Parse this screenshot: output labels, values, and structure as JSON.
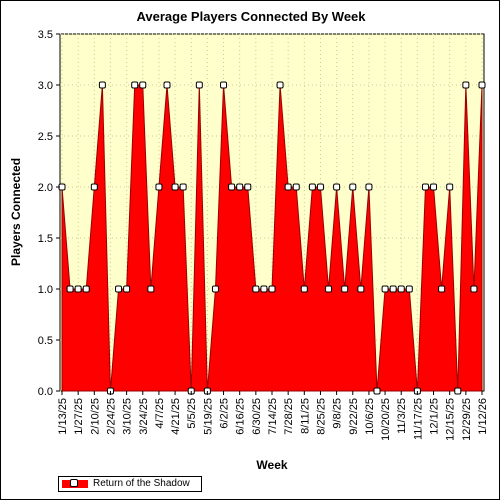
{
  "chart_data": {
    "type": "area",
    "title": "Average Players Connected By Week",
    "xlabel": "Week",
    "ylabel": "Players Connected",
    "ylim": [
      0,
      3.5
    ],
    "yticks": [
      "0.0",
      "0.5",
      "1.0",
      "1.5",
      "2.0",
      "2.5",
      "3.0",
      "3.5"
    ],
    "x_tick_labels": [
      "1/13/25",
      "1/27/25",
      "2/10/25",
      "2/24/25",
      "3/10/25",
      "3/24/25",
      "4/7/25",
      "4/21/25",
      "5/5/25",
      "5/19/25",
      "6/2/25",
      "6/16/25",
      "6/30/25",
      "7/14/25",
      "7/28/25",
      "8/11/25",
      "8/25/25",
      "9/8/25",
      "9/22/25",
      "10/6/25",
      "10/20/25",
      "11/3/25",
      "11/17/25",
      "12/1/25",
      "12/15/25",
      "12/29/25",
      "1/12/26"
    ],
    "grid": true,
    "legend_position": "bottom-left",
    "colors": {
      "fill": "#ff0000",
      "line": "#990000",
      "plot_bg": "#ffffcc",
      "grid": "#c8c8a0"
    },
    "series": [
      {
        "name": "Return of the Shadow",
        "x": [
          "1/13/25",
          "1/20/25",
          "1/27/25",
          "2/3/25",
          "2/10/25",
          "2/17/25",
          "2/24/25",
          "3/3/25",
          "3/10/25",
          "3/17/25",
          "3/24/25",
          "3/31/25",
          "4/7/25",
          "4/14/25",
          "4/21/25",
          "4/28/25",
          "5/5/25",
          "5/12/25",
          "5/19/25",
          "5/26/25",
          "6/2/25",
          "6/9/25",
          "6/16/25",
          "6/23/25",
          "6/30/25",
          "7/7/25",
          "7/14/25",
          "7/21/25",
          "7/28/25",
          "8/4/25",
          "8/11/25",
          "8/18/25",
          "8/25/25",
          "9/1/25",
          "9/8/25",
          "9/15/25",
          "9/22/25",
          "9/29/25",
          "10/6/25",
          "10/13/25",
          "10/20/25",
          "10/27/25",
          "11/3/25",
          "11/10/25",
          "11/17/25",
          "11/24/25",
          "12/1/25",
          "12/8/25",
          "12/15/25",
          "12/22/25",
          "12/29/25",
          "1/5/26",
          "1/12/26"
        ],
        "values": [
          2,
          1,
          1,
          1,
          2,
          3,
          0,
          1,
          1,
          3,
          3,
          1,
          2,
          3,
          2,
          2,
          0,
          3,
          0,
          1,
          3,
          2,
          2,
          2,
          1,
          1,
          1,
          3,
          2,
          2,
          1,
          2,
          2,
          1,
          2,
          1,
          2,
          1,
          2,
          0,
          1,
          1,
          1,
          1,
          0,
          2,
          2,
          1,
          2,
          0,
          3,
          1,
          3
        ]
      }
    ]
  }
}
